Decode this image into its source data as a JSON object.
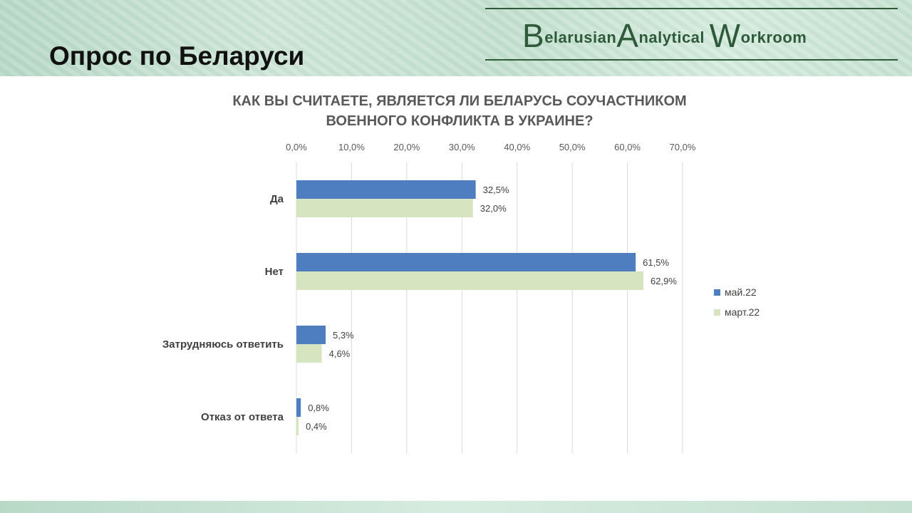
{
  "slide": {
    "title": "Опрос по Беларуси",
    "logo": {
      "b": "B",
      "w1": "elarusian",
      "a": "A",
      "w2": "nalytical",
      "wk": "W",
      "w3": "orkroom"
    }
  },
  "colors": {
    "may": "#4f7ec0",
    "march": "#d6e5bf",
    "grid": "#d9d9d9",
    "label": "#404040"
  },
  "chart_data": {
    "type": "bar",
    "orientation": "horizontal",
    "title_lines": [
      "КАК ВЫ СЧИТАЕТЕ, ЯВЛЯЕТСЯ ЛИ БЕЛАРУСЬ СОУЧАСТНИКОМ",
      "ВОЕННОГО КОНФЛИКТА В УКРАИНЕ?"
    ],
    "categories": [
      "Да",
      "Нет",
      "Затрудняюсь ответить",
      "Отказ от ответа"
    ],
    "series": [
      {
        "name": "май.22",
        "values": [
          32.5,
          61.5,
          5.3,
          0.8
        ],
        "labels": [
          "32,5%",
          "61,5%",
          "5,3%",
          "0,8%"
        ]
      },
      {
        "name": "март.22",
        "values": [
          32.0,
          62.9,
          4.6,
          0.4
        ],
        "labels": [
          "32,0%",
          "62,9%",
          "4,6%",
          "0,4%"
        ]
      }
    ],
    "xlim": [
      0,
      70
    ],
    "x_ticks": [
      0,
      10,
      20,
      30,
      40,
      50,
      60,
      70
    ],
    "x_tick_labels": [
      "0,0%",
      "10,0%",
      "20,0%",
      "30,0%",
      "40,0%",
      "50,0%",
      "60,0%",
      "70,0%"
    ],
    "x_axis_position": "top",
    "grid": true,
    "legend": "right"
  }
}
